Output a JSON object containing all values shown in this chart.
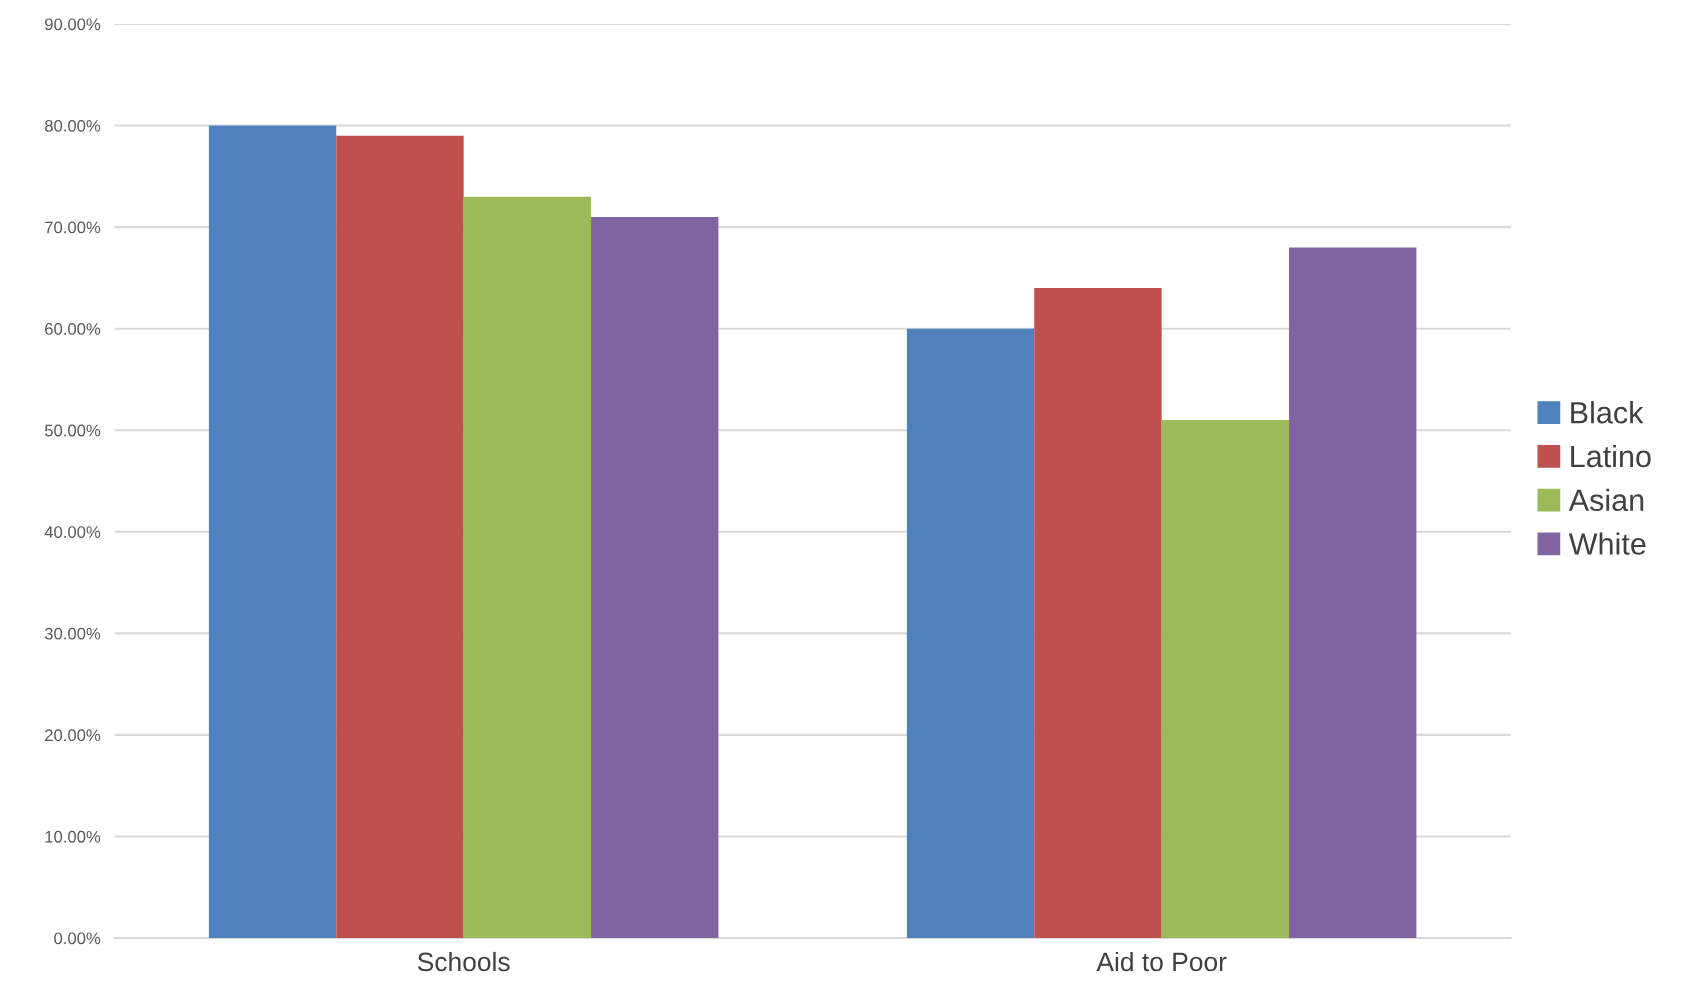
{
  "chart_data": {
    "type": "bar",
    "categories": [
      "Schools",
      "Aid to Poor"
    ],
    "series": [
      {
        "name": "Black",
        "color": "#4f81bd",
        "values": [
          80,
          60
        ]
      },
      {
        "name": "Latino",
        "color": "#c0504d",
        "values": [
          79,
          64
        ]
      },
      {
        "name": "Asian",
        "color": "#9bbb59",
        "values": [
          73,
          51
        ]
      },
      {
        "name": "White",
        "color": "#8064a2",
        "values": [
          71,
          68
        ]
      }
    ],
    "ylim": [
      0,
      90
    ],
    "yticks": [
      {
        "value": 0,
        "label": "0.00%"
      },
      {
        "value": 10,
        "label": "10.00%"
      },
      {
        "value": 20,
        "label": "20.00%"
      },
      {
        "value": 30,
        "label": "30.00%"
      },
      {
        "value": 40,
        "label": "40.00%"
      },
      {
        "value": 50,
        "label": "50.00%"
      },
      {
        "value": 60,
        "label": "60.00%"
      },
      {
        "value": 70,
        "label": "70.00%"
      },
      {
        "value": 80,
        "label": "80.00%"
      },
      {
        "value": 90,
        "label": "90.00%"
      }
    ],
    "grid": "y",
    "legend": "right"
  }
}
